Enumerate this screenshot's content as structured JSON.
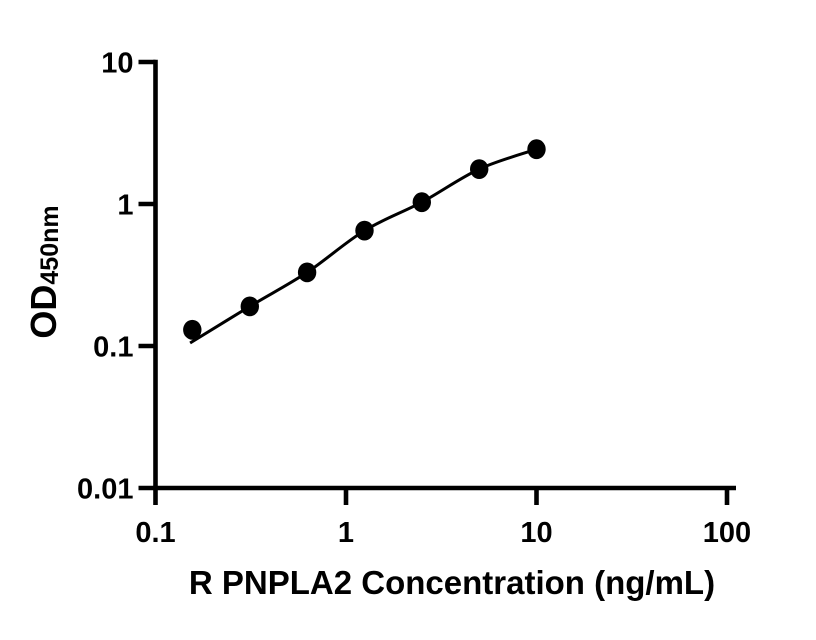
{
  "figure": {
    "background_color": "#ffffff",
    "ink_color": "#000000"
  },
  "chart_data": {
    "type": "scatter",
    "title": "",
    "xlabel": "R PNPLA2 Concentration (ng/mL)",
    "ylabel_main": "OD",
    "ylabel_sub": "450nm",
    "x_scale": "log",
    "y_scale": "log",
    "xlim": [
      0.1,
      100
    ],
    "ylim": [
      0.01,
      10
    ],
    "grid": false,
    "legend": "none",
    "x_ticks": [
      {
        "value": 0.1,
        "label": "0.1"
      },
      {
        "value": 1,
        "label": "1"
      },
      {
        "value": 10,
        "label": "10"
      },
      {
        "value": 100,
        "label": "100"
      }
    ],
    "y_ticks": [
      {
        "value": 0.01,
        "label": "0.01"
      },
      {
        "value": 0.1,
        "label": "0.1"
      },
      {
        "value": 1,
        "label": "1"
      },
      {
        "value": 10,
        "label": "10"
      }
    ],
    "series": [
      {
        "name": "standard curve points",
        "marker": "filled-circle",
        "color": "#000000",
        "x": [
          0.156,
          0.3125,
          0.625,
          1.25,
          2.5,
          5,
          10
        ],
        "od": [
          0.13,
          0.19,
          0.33,
          0.65,
          1.03,
          1.76,
          2.43
        ]
      }
    ],
    "fit_curve": {
      "name": "4PL fit line",
      "color": "#000000",
      "x": [
        0.152,
        0.3125,
        0.625,
        1.25,
        2.5,
        5,
        10
      ],
      "od": [
        0.105,
        0.19,
        0.33,
        0.65,
        1.03,
        1.76,
        2.43
      ]
    }
  }
}
